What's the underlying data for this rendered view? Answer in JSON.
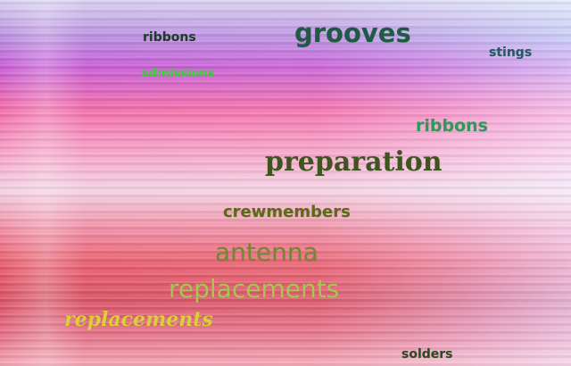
{
  "words": [
    {
      "text": "ribbons",
      "color": "#1f3b2a"
    },
    {
      "text": "grooves",
      "color": "#1f5a45"
    },
    {
      "text": "stings",
      "color": "#215a63"
    },
    {
      "text": "admissions",
      "color": "#3ad23a"
    },
    {
      "text": "ribbons",
      "color": "#2e9a58"
    },
    {
      "text": "preparation",
      "color": "#3f5520"
    },
    {
      "text": "crewmembers",
      "color": "#5a6a16"
    },
    {
      "text": "antenna",
      "color": "#6f8a2f"
    },
    {
      "text": "replacements",
      "color": "#a6c84f"
    },
    {
      "text": "replacements",
      "color": "#dad03a"
    },
    {
      "text": "solders",
      "color": "#2a4a1f"
    }
  ]
}
